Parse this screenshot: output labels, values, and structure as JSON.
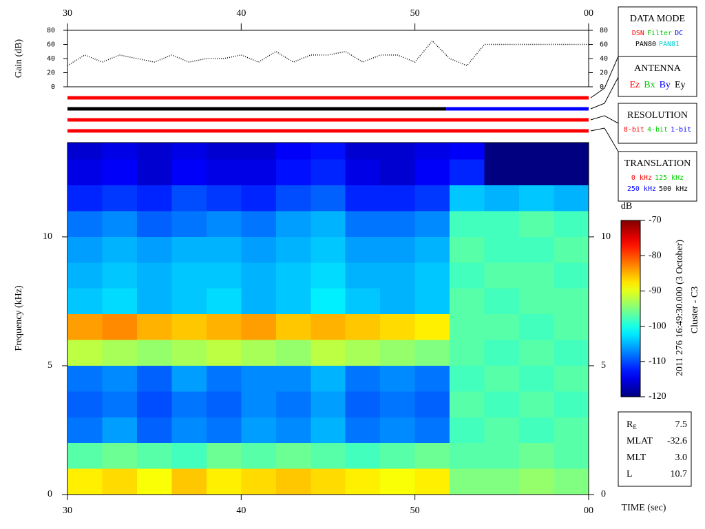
{
  "chart_data": [
    {
      "type": "line",
      "y_label": "Gain (dB)",
      "x": [
        30,
        31,
        32,
        33,
        34,
        35,
        36,
        37,
        38,
        39,
        40,
        41,
        42,
        43,
        44,
        45,
        46,
        47,
        48,
        49,
        50,
        51,
        52,
        53,
        54,
        55,
        56,
        57,
        58,
        59,
        60
      ],
      "series": [
        {
          "color": "#000000",
          "values": [
            30,
            45,
            35,
            45,
            40,
            35,
            45,
            35,
            40,
            40,
            45,
            35,
            50,
            35,
            45,
            45,
            50,
            35,
            45,
            45,
            35,
            65,
            40,
            30,
            60,
            60,
            60,
            60,
            60,
            60,
            60
          ]
        }
      ],
      "xlim": [
        30,
        60
      ],
      "xticks": [
        30,
        40,
        50,
        {
          "value": 60,
          "label": "00"
        }
      ],
      "ylim": [
        0,
        80
      ],
      "yticks": [
        0,
        20,
        40,
        60,
        80
      ]
    },
    {
      "type": "heatmap",
      "x_label": "TIME (sec)",
      "y_label": "Frequency (kHz)",
      "x_bins": [
        30,
        32,
        34,
        36,
        38,
        40,
        42,
        44,
        46,
        48,
        50,
        52,
        54,
        56,
        58,
        60
      ],
      "y_bins": [
        0,
        1,
        2,
        3,
        4,
        5,
        6,
        7,
        8,
        9,
        10,
        11,
        12,
        13,
        13.66
      ],
      "values": [
        [
          -88,
          -87,
          -89,
          -86,
          -88,
          -87,
          -86,
          -87,
          -88,
          -89,
          -88,
          -95,
          -95,
          -94,
          -95
        ],
        [
          -97,
          -96,
          -97,
          -98,
          -96,
          -97,
          -96,
          -97,
          -98,
          -97,
          -96,
          -97,
          -97,
          -96,
          -97
        ],
        [
          -108,
          -106,
          -109,
          -107,
          -108,
          -106,
          -107,
          -105,
          -108,
          -107,
          -108,
          -98,
          -97,
          -98,
          -97
        ],
        [
          -109,
          -108,
          -110,
          -108,
          -109,
          -107,
          -108,
          -106,
          -109,
          -108,
          -109,
          -97,
          -98,
          -97,
          -98
        ],
        [
          -108,
          -107,
          -109,
          -106,
          -108,
          -107,
          -107,
          -105,
          -108,
          -107,
          -108,
          -98,
          -97,
          -98,
          -97
        ],
        [
          -92,
          -93,
          -94,
          -93,
          -92,
          -93,
          -94,
          -92,
          -93,
          -94,
          -95,
          -97,
          -98,
          -97,
          -98
        ],
        [
          -84,
          -83,
          -85,
          -86,
          -85,
          -84,
          -86,
          -85,
          -86,
          -87,
          -88,
          -97,
          -97,
          -98,
          -97
        ],
        [
          -104,
          -103,
          -105,
          -104,
          -103,
          -105,
          -104,
          -102,
          -104,
          -105,
          -104,
          -97,
          -98,
          -97,
          -97
        ],
        [
          -105,
          -104,
          -105,
          -104,
          -104,
          -105,
          -104,
          -103,
          -105,
          -105,
          -104,
          -98,
          -97,
          -97,
          -98
        ],
        [
          -106,
          -105,
          -106,
          -105,
          -105,
          -106,
          -105,
          -104,
          -106,
          -106,
          -105,
          -97,
          -98,
          -98,
          -97
        ],
        [
          -108,
          -107,
          -109,
          -108,
          -107,
          -108,
          -106,
          -105,
          -108,
          -108,
          -107,
          -98,
          -98,
          -97,
          -98
        ],
        [
          -112,
          -111,
          -112,
          -110,
          -111,
          -112,
          -110,
          -109,
          -112,
          -112,
          -111,
          -104,
          -105,
          -104,
          -105
        ],
        [
          -115,
          -114,
          -116,
          -114,
          -115,
          -115,
          -113,
          -112,
          -115,
          -116,
          -114,
          -112,
          -120,
          -120,
          -120
        ],
        [
          -116,
          -115,
          -116,
          -115,
          -116,
          -116,
          -114,
          -113,
          -116,
          -116,
          -115,
          -114,
          -120,
          -120,
          -120
        ]
      ],
      "xlim": [
        30,
        60
      ],
      "xticks": [
        30,
        40,
        50,
        {
          "value": 60,
          "label": "00"
        }
      ],
      "ylim": [
        0,
        13.66
      ],
      "yticks": [
        0,
        5,
        10
      ],
      "colorscale": "jet",
      "colorbar": {
        "label": "dB",
        "clim": [
          -120,
          -70
        ],
        "ticks": [
          -70,
          -80,
          -90,
          -100,
          -110,
          -120
        ]
      }
    }
  ],
  "status_bars": [
    {
      "segments": [
        {
          "start": 30,
          "end": 60,
          "color": "#ff0000"
        }
      ]
    },
    {
      "segments": [
        {
          "start": 30,
          "end": 51.8,
          "color": "#000000"
        },
        {
          "start": 51.8,
          "end": 60,
          "color": "#0000ff"
        }
      ]
    },
    {
      "segments": [
        {
          "start": 30,
          "end": 60,
          "color": "#ff0000"
        }
      ]
    },
    {
      "segments": [
        {
          "start": 30,
          "end": 60,
          "color": "#ff0000"
        }
      ]
    }
  ],
  "legend_panels": [
    {
      "title": "DATA MODE",
      "rows": [
        [
          {
            "text": "DSN",
            "color": "#ff0000"
          },
          {
            "text": "Filter",
            "color": "#00cc00"
          },
          {
            "text": "DC",
            "color": "#0000ff"
          }
        ],
        [
          {
            "text": "PAN80",
            "color": "#000000"
          },
          {
            "text": "PAN81",
            "color": "#00cccc"
          }
        ]
      ]
    },
    {
      "title": "ANTENNA",
      "rows": [
        [
          {
            "text": "Ez",
            "color": "#ff0000"
          },
          {
            "text": "Bx",
            "color": "#00cc00"
          },
          {
            "text": "By",
            "color": "#0000ff"
          },
          {
            "text": "Ey",
            "color": "#000000"
          }
        ]
      ]
    },
    {
      "title": "RESOLUTION",
      "rows": [
        [
          {
            "text": "8-bit",
            "color": "#ff0000"
          },
          {
            "text": "4-bit",
            "color": "#00cc00"
          },
          {
            "text": "1-bit",
            "color": "#0000ff"
          }
        ]
      ]
    },
    {
      "title": "TRANSLATION",
      "rows": [
        [
          {
            "text": "0 kHz",
            "color": "#ff0000"
          },
          {
            "text": "125 kHz",
            "color": "#00cc00"
          }
        ],
        [
          {
            "text": "250 kHz",
            "color": "#0000ff"
          },
          {
            "text": "500 kHz",
            "color": "#000000"
          }
        ]
      ]
    }
  ],
  "info": [
    {
      "label": "R",
      "sub": "E",
      "value": "7.5"
    },
    {
      "label": "MLAT",
      "value": "-32.6"
    },
    {
      "label": "MLT",
      "value": "3.0"
    },
    {
      "label": "L",
      "value": "10.7"
    }
  ],
  "timestamp": "2011 276 16:49:30.000 (3 October)",
  "spacecraft": "Cluster - C3"
}
